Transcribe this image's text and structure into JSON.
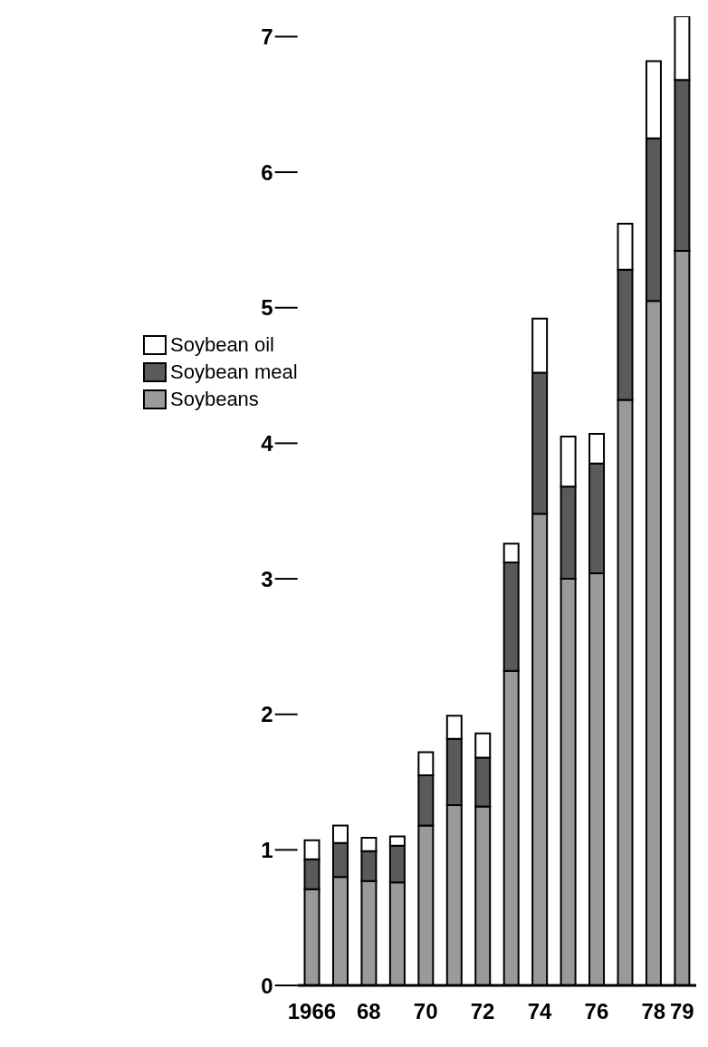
{
  "chart_data": {
    "type": "bar",
    "stacked": true,
    "categories": [
      "1966",
      null,
      "68",
      null,
      "70",
      null,
      "72",
      null,
      "74",
      null,
      "76",
      null,
      "78",
      "79"
    ],
    "series": [
      {
        "name": "Soybeans",
        "color": "#9a9a9a",
        "values": [
          0.71,
          0.8,
          0.77,
          0.76,
          1.18,
          1.33,
          1.32,
          2.32,
          3.48,
          3.0,
          3.04,
          4.32,
          5.05,
          5.42
        ]
      },
      {
        "name": "Soybean meal",
        "color": "#5a5a5a",
        "values": [
          0.22,
          0.25,
          0.22,
          0.27,
          0.37,
          0.49,
          0.36,
          0.8,
          1.04,
          0.68,
          0.81,
          0.96,
          1.2,
          1.26
        ]
      },
      {
        "name": "Soybean oil",
        "color": "#ffffff",
        "values": [
          0.14,
          0.13,
          0.1,
          0.07,
          0.17,
          0.17,
          0.18,
          0.14,
          0.4,
          0.37,
          0.22,
          0.34,
          0.57,
          0.47
        ]
      }
    ],
    "ylim": [
      0,
      7.15
    ],
    "yticks": [
      0,
      1,
      2,
      3,
      4,
      5,
      6,
      7
    ],
    "grid": false,
    "legend": "top left"
  }
}
